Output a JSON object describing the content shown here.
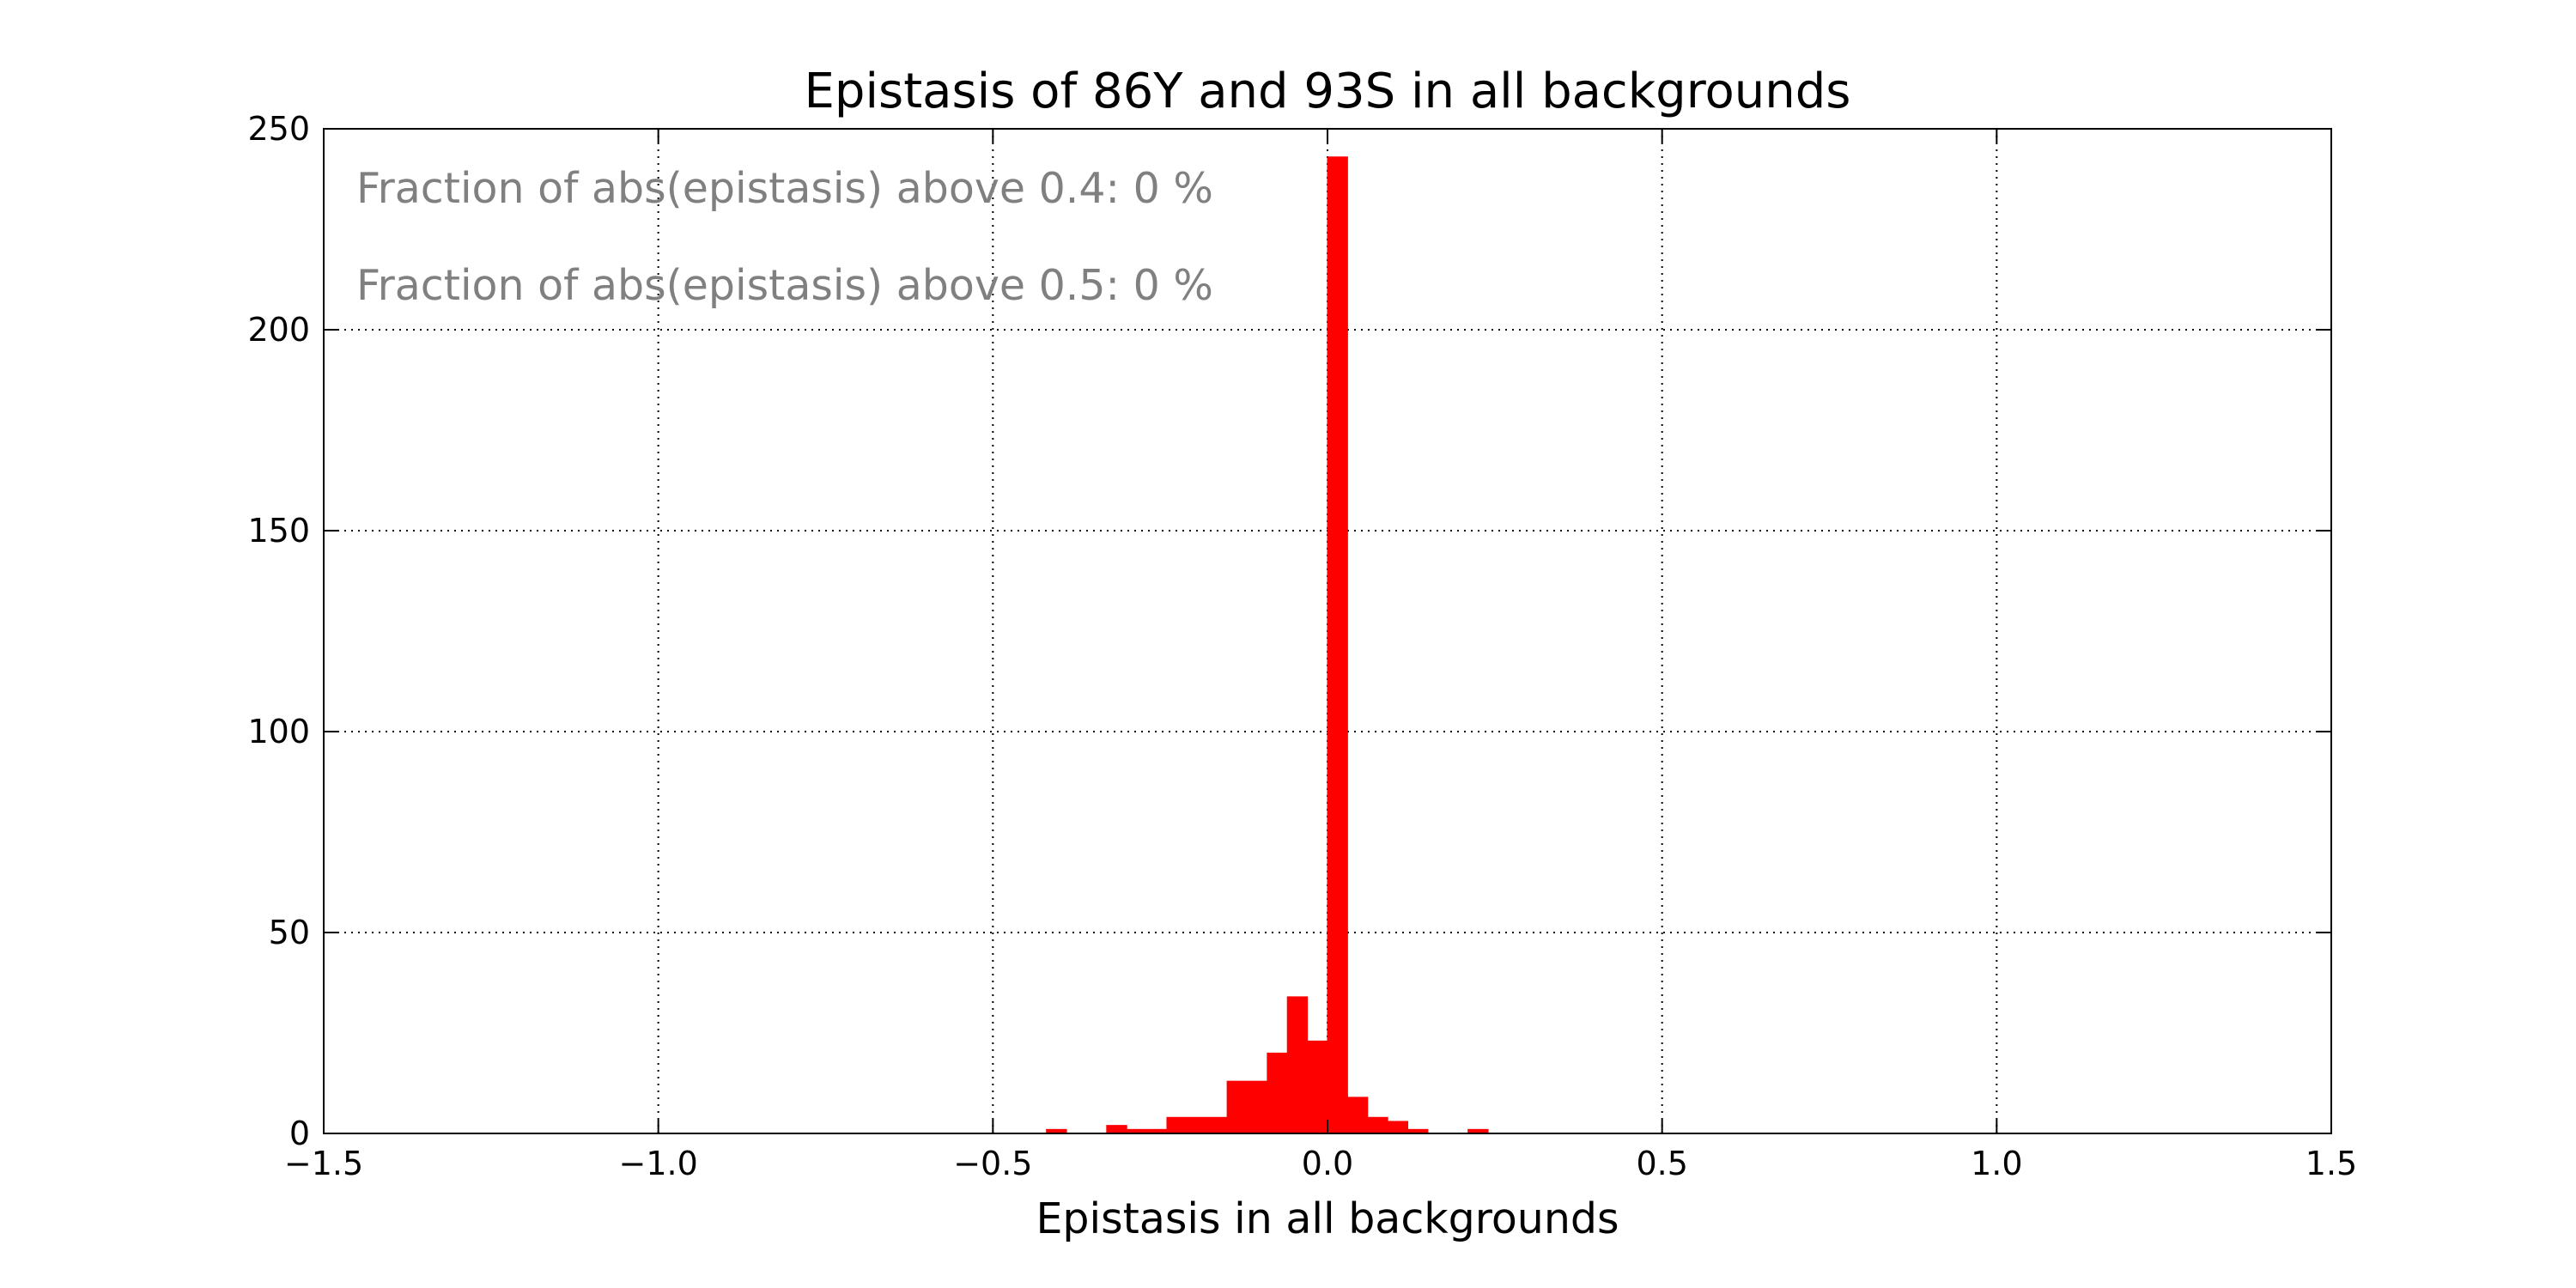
{
  "chart_data": {
    "type": "bar",
    "title": "Epistasis of 86Y and 93S in all backgrounds",
    "xlabel": "Epistasis in all backgrounds",
    "ylabel": "",
    "xlim": [
      -1.5,
      1.5
    ],
    "ylim": [
      0,
      250
    ],
    "x_ticks": [
      -1.5,
      -1.0,
      -0.5,
      0.0,
      0.5,
      1.0,
      1.5
    ],
    "x_tick_labels": [
      "−1.5",
      "−1.0",
      "−0.5",
      "0.0",
      "0.5",
      "1.0",
      "1.5"
    ],
    "y_ticks": [
      0,
      50,
      100,
      150,
      200,
      250
    ],
    "y_tick_labels": [
      "0",
      "50",
      "100",
      "150",
      "200",
      "250"
    ],
    "grid": true,
    "bar_color": "#ff0000",
    "annotations": [
      "Fraction of abs(epistasis) above 0.4: 0 %",
      "Fraction of abs(epistasis) above 0.5: 0 %"
    ],
    "bins": [
      {
        "x0": -0.42,
        "x1": -0.39,
        "count": 1
      },
      {
        "x0": -0.33,
        "x1": -0.3,
        "count": 2
      },
      {
        "x0": -0.3,
        "x1": -0.24,
        "count": 1
      },
      {
        "x0": -0.24,
        "x1": -0.15,
        "count": 4
      },
      {
        "x0": -0.15,
        "x1": -0.09,
        "count": 13
      },
      {
        "x0": -0.09,
        "x1": -0.06,
        "count": 20
      },
      {
        "x0": -0.06,
        "x1": -0.03,
        "count": 34
      },
      {
        "x0": -0.03,
        "x1": 0.0,
        "count": 23
      },
      {
        "x0": 0.0,
        "x1": 0.03,
        "count": 243
      },
      {
        "x0": 0.03,
        "x1": 0.06,
        "count": 9
      },
      {
        "x0": 0.06,
        "x1": 0.09,
        "count": 4
      },
      {
        "x0": 0.09,
        "x1": 0.12,
        "count": 3
      },
      {
        "x0": 0.12,
        "x1": 0.15,
        "count": 1
      },
      {
        "x0": 0.21,
        "x1": 0.24,
        "count": 1
      }
    ]
  }
}
